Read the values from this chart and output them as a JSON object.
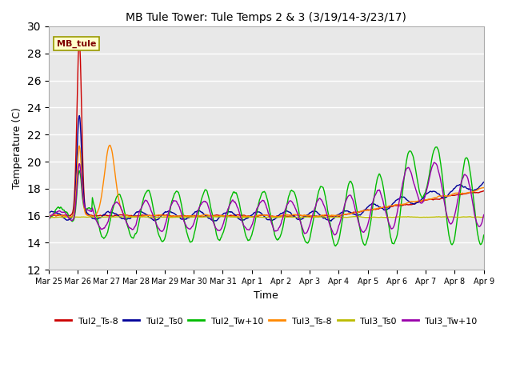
{
  "title": "MB Tule Tower: Tule Temps 2 & 3 (3/19/14-3/23/17)",
  "xlabel": "Time",
  "ylabel": "Temperature (C)",
  "ylim": [
    12,
    30
  ],
  "yticks": [
    12,
    14,
    16,
    18,
    20,
    22,
    24,
    26,
    28,
    30
  ],
  "plot_bg_color": "#e8e8e8",
  "annotation_text": "MB_tule",
  "annotation_bg": "#ffffcc",
  "annotation_color": "#800000",
  "annotation_border": "#999900",
  "legend_entries": [
    "Tul2_Ts-8",
    "Tul2_Ts0",
    "Tul2_Tw+10",
    "Tul3_Ts-8",
    "Tul3_Ts0",
    "Tul3_Tw+10"
  ],
  "legend_colors": [
    "#cc0000",
    "#000099",
    "#00bb00",
    "#ff8800",
    "#bbbb00",
    "#9900aa"
  ],
  "line_width": 1.0,
  "xtick_labels": [
    "Mar 25",
    "Mar 26",
    "Mar 27",
    "Mar 28",
    "Mar 29",
    "Mar 30",
    "Mar 31",
    "Apr 1",
    "Apr 2",
    "Apr 3",
    "Apr 4",
    "Apr 5",
    "Apr 6",
    "Apr 7",
    "Apr 8",
    "Apr 9"
  ],
  "n_points": 800
}
